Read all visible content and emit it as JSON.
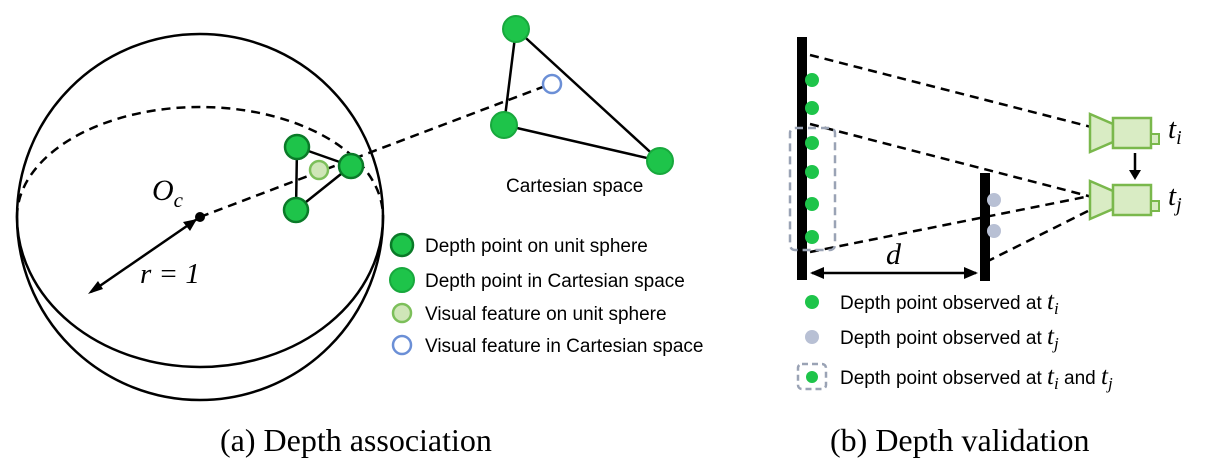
{
  "panel_a": {
    "caption": "(a) Depth association",
    "origin_label": "O",
    "origin_subscript": "c",
    "radius_label": "r = 1",
    "cartesian_label": "Cartesian space",
    "legend": [
      {
        "text": "Depth point on unit sphere",
        "icon": "depth-point-sphere"
      },
      {
        "text": "Depth point in Cartesian space",
        "icon": "depth-point-cartesian"
      },
      {
        "text": "Visual feature on unit sphere",
        "icon": "visual-feature-sphere"
      },
      {
        "text": "Visual feature in Cartesian space",
        "icon": "visual-feature-cartesian"
      }
    ]
  },
  "panel_b": {
    "caption": "(b) Depth validation",
    "distance_label": "d",
    "cam_i_label": "t",
    "cam_i_sub": "i",
    "cam_j_label": "t",
    "cam_j_sub": "j",
    "legend": [
      {
        "text": "Depth point observed at ",
        "t": "t",
        "sub": "i",
        "extra": ""
      },
      {
        "text": "Depth point observed at ",
        "t": "t",
        "sub": "j",
        "extra": ""
      },
      {
        "text": "Depth point observed at ",
        "t": "t",
        "sub": "i",
        "extra": " and ",
        "t2": "t",
        "sub2": "j"
      }
    ]
  },
  "colors": {
    "green": "#1ec44a",
    "green_dark": "#0a7a28",
    "green_light": "#cfe6b8",
    "green_light_stroke": "#7cbf5a",
    "blue_stroke": "#6b8fd6",
    "grey_point": "#b8c0d4",
    "camera_fill": "#d9ecc4",
    "camera_stroke": "#7ab84c",
    "dashed_box": "#9aa3b5"
  }
}
